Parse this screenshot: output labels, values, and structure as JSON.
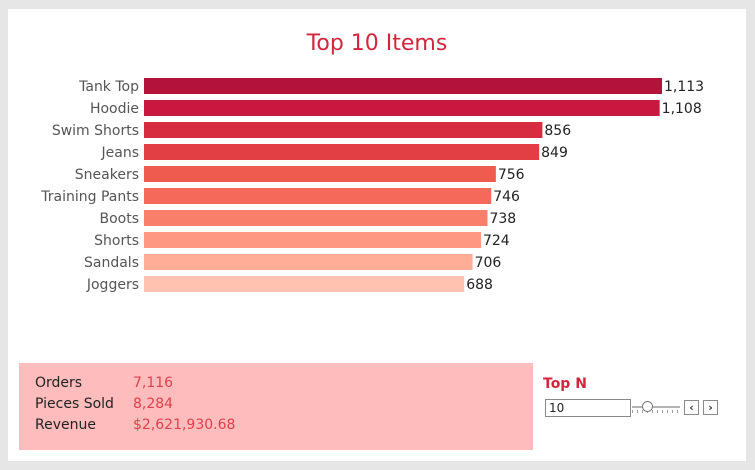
{
  "chart_data": {
    "type": "bar",
    "orientation": "horizontal",
    "title": "Top 10 Items",
    "categories": [
      "Tank Top",
      "Hoodie",
      "Swim Shorts",
      "Jeans",
      "Sneakers",
      "Training Pants",
      "Boots",
      "Shorts",
      "Sandals",
      "Joggers"
    ],
    "values": [
      1113,
      1108,
      856,
      849,
      756,
      746,
      738,
      724,
      706,
      688
    ],
    "value_labels": [
      "1,113",
      "1,108",
      "856",
      "849",
      "756",
      "746",
      "738",
      "724",
      "706",
      "688"
    ],
    "colors": [
      "#b3133b",
      "#c91840",
      "#d72b40",
      "#e23f44",
      "#ef5b4c",
      "#f5695a",
      "#fa7f6a",
      "#ff9882",
      "#ffad97",
      "#ffc2b1"
    ],
    "xlabel": "",
    "ylabel": "",
    "xlim": [
      0,
      1113
    ],
    "grid": false,
    "legend": "none"
  },
  "summary": {
    "orders_label": "Orders",
    "orders_value": "7,116",
    "pieces_label": "Pieces Sold",
    "pieces_value": "8,284",
    "revenue_label": "Revenue",
    "revenue_value": "$2,621,930.68"
  },
  "topn": {
    "label": "Top N",
    "value": "10",
    "prev_label": "‹",
    "next_label": "›"
  },
  "colors": {
    "title": "#d3263d",
    "kpi_background": "#ffbcbc",
    "kpi_value": "#e0404d"
  }
}
